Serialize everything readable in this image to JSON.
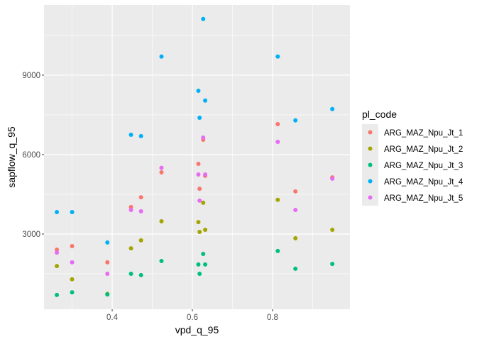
{
  "chart_data": {
    "type": "scatter",
    "title": "",
    "xlabel": "vpd_q_95",
    "ylabel": "sapflow_q_95",
    "xlim": [
      0.23,
      0.993
    ],
    "ylim": [
      160,
      11650
    ],
    "x_ticks": [
      0.4,
      0.6,
      0.8
    ],
    "x_tick_labels": [
      "0.4",
      "0.6",
      "0.8"
    ],
    "y_ticks": [
      3000,
      6000,
      9000
    ],
    "y_tick_labels": [
      "3000",
      "6000",
      "9000"
    ],
    "grid": true,
    "legend": {
      "title": "pl_code",
      "placement": "right"
    },
    "x": [
      0.262,
      0.3,
      0.388,
      0.447,
      0.472,
      0.523,
      0.615,
      0.618,
      0.627,
      0.632,
      0.813,
      0.857,
      0.949
    ],
    "series": [
      {
        "name": "ARG_MAZ_Npu_Jt_1",
        "color": "#F8766D",
        "values": [
          2410,
          2545,
          1930,
          4020,
          4390,
          5330,
          5650,
          4710,
          6560,
          5200,
          7150,
          4610,
          5140
        ]
      },
      {
        "name": "ARG_MAZ_Npu_Jt_2",
        "color": "#A3A500",
        "values": [
          1790,
          1290,
          740,
          2460,
          2760,
          3480,
          3450,
          3080,
          4180,
          3160,
          4290,
          2840,
          3160
        ]
      },
      {
        "name": "ARG_MAZ_Npu_Jt_3",
        "color": "#00BF7D",
        "values": [
          700,
          800,
          720,
          1500,
          1450,
          1980,
          1850,
          1500,
          2250,
          1850,
          2360,
          1690,
          1870
        ]
      },
      {
        "name": "ARG_MAZ_Npu_Jt_4",
        "color": "#00B0F6",
        "values": [
          3830,
          3830,
          2680,
          6750,
          6700,
          9700,
          8410,
          7390,
          11120,
          8040,
          9700,
          7290,
          7720
        ]
      },
      {
        "name": "ARG_MAZ_Npu_Jt_5",
        "color": "#E76BF3",
        "values": [
          2300,
          1930,
          1500,
          3910,
          3860,
          5500,
          5250,
          4260,
          6640,
          5250,
          6480,
          3910,
          5090
        ]
      }
    ]
  }
}
